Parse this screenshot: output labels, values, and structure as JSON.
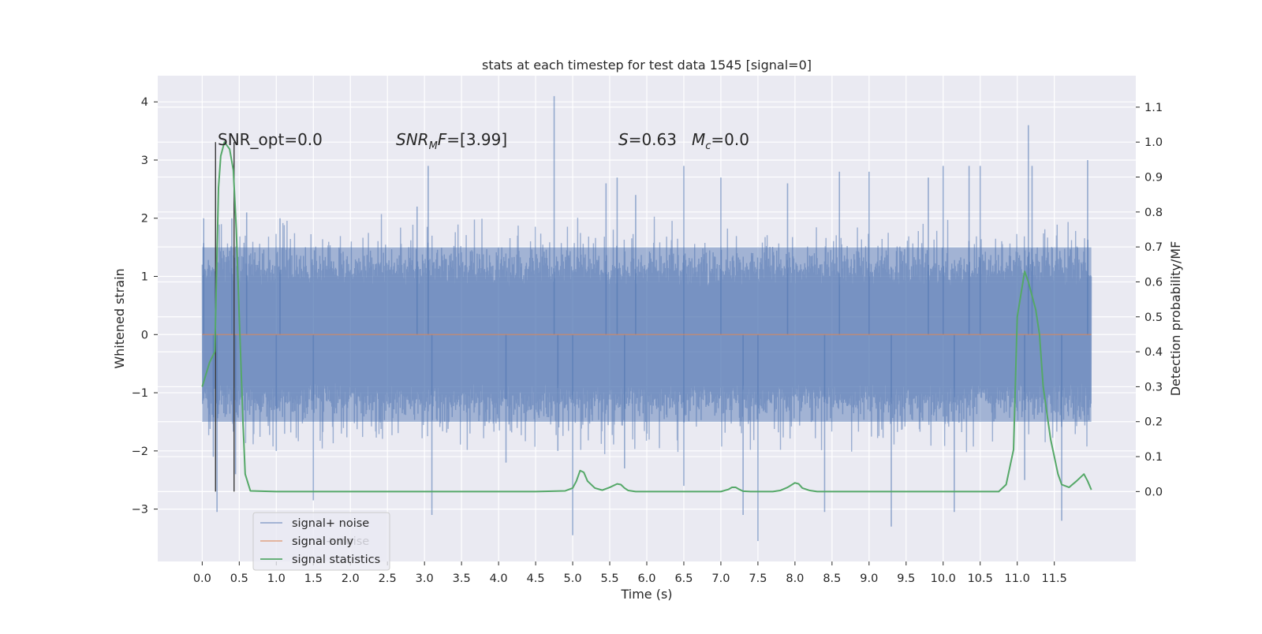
{
  "chart_data": {
    "type": "line",
    "title": "stats at each timestep for test data 1545 [signal=0]",
    "xlabel": "Time (s)",
    "ylabel": "Whitened strain",
    "ylabel_right": "Detection probability/MF",
    "xlim": [
      -0.6,
      12.6
    ],
    "ylim": [
      -3.9,
      4.45
    ],
    "ylim_right": [
      -0.2,
      1.19
    ],
    "x_ticks": [
      0.0,
      0.5,
      1.0,
      1.5,
      2.0,
      2.5,
      3.0,
      3.5,
      4.0,
      4.5,
      5.0,
      5.5,
      6.0,
      6.5,
      7.0,
      7.5,
      8.0,
      8.5,
      9.0,
      9.5,
      10.0,
      10.5,
      11.0,
      11.5
    ],
    "x_tick_labels": [
      "0.0",
      "0.5",
      "1.0",
      "1.5",
      "2.0",
      "2.5",
      "3.0",
      "3.5",
      "4.0",
      "4.5",
      "5.0",
      "5.5",
      "6.0",
      "6.5",
      "7.0",
      "7.5",
      "8.0",
      "8.5",
      "9.0",
      "9.5",
      "10.0",
      "10.5",
      "11.0",
      "11.5"
    ],
    "y_ticks": [
      -3,
      -2,
      -1,
      0,
      1,
      2,
      3,
      4
    ],
    "y_tick_labels": [
      "−3",
      "−2",
      "−1",
      "0",
      "1",
      "2",
      "3",
      "4"
    ],
    "y_right_ticks": [
      0.0,
      0.1,
      0.2,
      0.3,
      0.4,
      0.5,
      0.6,
      0.7,
      0.8,
      0.9,
      1.0,
      1.1
    ],
    "y_right_tick_labels": [
      "0.0",
      "0.1",
      "0.2",
      "0.3",
      "0.4",
      "0.5",
      "0.6",
      "0.7",
      "0.8",
      "0.9",
      "1.0",
      "1.1"
    ],
    "grid": true,
    "legend_position": "lower-left",
    "series": [
      {
        "name": "signal+ noise",
        "color": "#4c72b0",
        "alpha": 0.5,
        "x_range": [
          0.0,
          12.0
        ],
        "band": [
          -1.5,
          1.5
        ],
        "spikes": [
          [
            0.02,
            2.0
          ],
          [
            0.15,
            -2.1
          ],
          [
            0.2,
            -3.05
          ],
          [
            0.4,
            2.0
          ],
          [
            0.45,
            -2.4
          ],
          [
            0.6,
            2.1
          ],
          [
            1.0,
            -2.0
          ],
          [
            1.05,
            2.0
          ],
          [
            1.5,
            -2.85
          ],
          [
            2.9,
            2.2
          ],
          [
            3.05,
            2.9
          ],
          [
            3.1,
            -3.1
          ],
          [
            4.1,
            -2.2
          ],
          [
            4.75,
            4.1
          ],
          [
            4.8,
            -2.0
          ],
          [
            5.0,
            -3.45
          ],
          [
            5.45,
            2.6
          ],
          [
            5.6,
            2.7
          ],
          [
            5.7,
            -2.3
          ],
          [
            5.85,
            2.4
          ],
          [
            6.5,
            -2.6
          ],
          [
            6.5,
            2.9
          ],
          [
            7.0,
            2.7
          ],
          [
            7.3,
            -3.1
          ],
          [
            7.5,
            -3.55
          ],
          [
            7.9,
            2.6
          ],
          [
            8.4,
            -3.05
          ],
          [
            8.6,
            2.8
          ],
          [
            9.0,
            2.8
          ],
          [
            9.3,
            -3.3
          ],
          [
            9.8,
            2.7
          ],
          [
            10.0,
            2.9
          ],
          [
            10.15,
            -3.05
          ],
          [
            10.35,
            2.9
          ],
          [
            10.5,
            2.9
          ],
          [
            11.1,
            -2.5
          ],
          [
            11.15,
            3.6
          ],
          [
            11.2,
            2.9
          ],
          [
            11.6,
            -3.2
          ],
          [
            11.95,
            3.0
          ]
        ]
      },
      {
        "name": "signal only",
        "color": "#dd8452",
        "alpha": 0.6,
        "x": [
          0.0,
          12.0
        ],
        "y": [
          0.0,
          0.0
        ]
      },
      {
        "name": "signal statistics",
        "color": "#55a868",
        "axis": "right",
        "x": [
          0.0,
          0.1,
          0.17,
          0.22,
          0.25,
          0.3,
          0.37,
          0.42,
          0.46,
          0.5,
          0.55,
          0.58,
          0.65,
          1,
          1.5,
          2,
          2.5,
          3,
          3.5,
          4,
          4.5,
          4.9,
          5.0,
          5.05,
          5.1,
          5.15,
          5.2,
          5.3,
          5.4,
          5.5,
          5.6,
          5.65,
          5.7,
          5.75,
          5.85,
          6,
          6.5,
          7.0,
          7.1,
          7.15,
          7.2,
          7.25,
          7.3,
          7.4,
          7.5,
          7.7,
          7.8,
          7.9,
          8.0,
          8.05,
          8.1,
          8.2,
          8.3,
          8.5,
          9,
          9.5,
          10,
          10.5,
          10.75,
          10.85,
          10.95,
          11.0,
          11.1,
          11.15,
          11.2,
          11.25,
          11.3,
          11.35,
          11.45,
          11.55,
          11.6,
          11.7,
          11.8,
          11.9,
          11.95,
          12.0
        ],
        "y": [
          0.3,
          0.37,
          0.4,
          0.87,
          0.96,
          1.0,
          0.98,
          0.92,
          0.75,
          0.5,
          0.2,
          0.05,
          0.002,
          0.0,
          0.0,
          0.0,
          0.0,
          0.0,
          0.0,
          0.0,
          0.0,
          0.002,
          0.01,
          0.03,
          0.06,
          0.055,
          0.03,
          0.01,
          0.004,
          0.012,
          0.022,
          0.02,
          0.01,
          0.003,
          0.0,
          0.0,
          0.0,
          0.0,
          0.006,
          0.012,
          0.012,
          0.006,
          0.001,
          0.0,
          0.0,
          0.0,
          0.003,
          0.012,
          0.025,
          0.022,
          0.01,
          0.003,
          0.0,
          0.0,
          0.0,
          0.0,
          0.0,
          0.0,
          0.0,
          0.02,
          0.12,
          0.5,
          0.63,
          0.6,
          0.56,
          0.52,
          0.45,
          0.3,
          0.15,
          0.05,
          0.02,
          0.012,
          0.03,
          0.05,
          0.03,
          0.005
        ]
      }
    ],
    "vertical_markers": [
      0.18,
      0.43
    ],
    "annotations": [
      "SNR_opt=0.0",
      "[3.99]",
      "=0.63",
      "=0.0"
    ],
    "annotation_symbols": [
      "SNR",
      "M",
      "F=",
      "S",
      "M",
      "c"
    ],
    "legend_overlap_text": "signal+ noise"
  }
}
